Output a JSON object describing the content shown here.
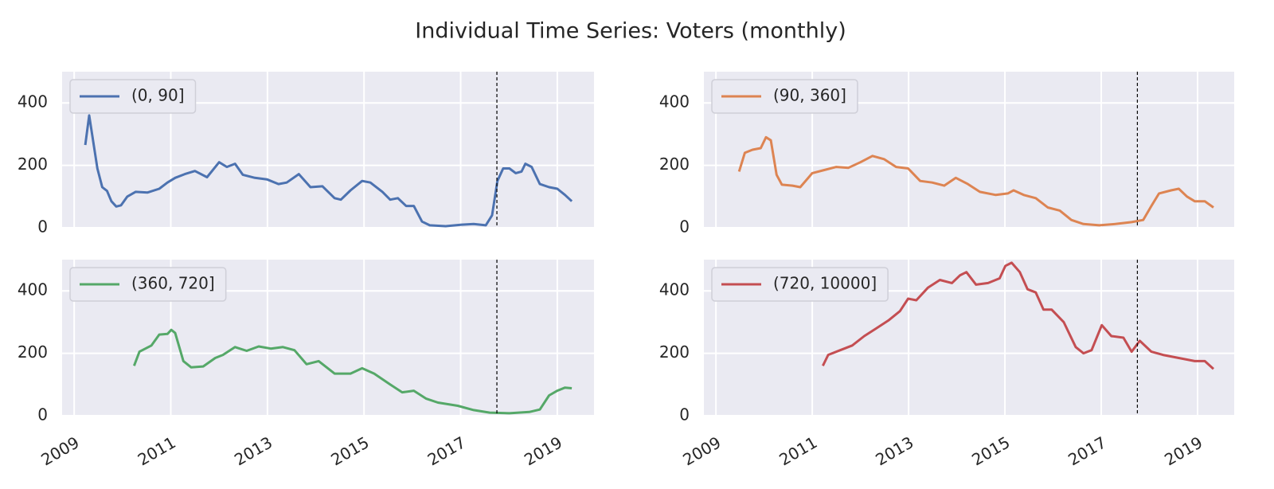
{
  "title": "Individual Time Series: Voters (monthly)",
  "chart_data": [
    {
      "type": "line",
      "legend": "upper left",
      "grid": true,
      "xticklabels": false,
      "vline": 2017.75,
      "xlim": [
        2008.75,
        2019.76
      ],
      "xticks": [
        2009,
        2011,
        2013,
        2015,
        2017,
        2019
      ],
      "ylim": [
        0,
        500
      ],
      "yticks": [
        0,
        200,
        400
      ],
      "x": [
        2009.23,
        2009.31,
        2009.48,
        2009.58,
        2009.68,
        2009.77,
        2009.87,
        2009.97,
        2010.1,
        2010.27,
        2010.52,
        2010.76,
        2010.93,
        2011.09,
        2011.29,
        2011.5,
        2011.75,
        2012.0,
        2012.16,
        2012.33,
        2012.49,
        2012.74,
        2012.99,
        2013.23,
        2013.4,
        2013.65,
        2013.89,
        2014.14,
        2014.39,
        2014.52,
        2014.72,
        2014.96,
        2015.13,
        2015.38,
        2015.54,
        2015.7,
        2015.87,
        2016.03,
        2016.2,
        2016.36,
        2016.69,
        2017.02,
        2017.27,
        2017.52,
        2017.65,
        2017.76,
        2017.88,
        2018.01,
        2018.14,
        2018.26,
        2018.34,
        2018.47,
        2018.64,
        2018.83,
        2019.0,
        2019.16,
        2019.3
      ],
      "series": [
        {
          "name": "(0, 90]",
          "color": "#4c72b0",
          "values": [
            265,
            360,
            190,
            130,
            118,
            85,
            68,
            72,
            100,
            115,
            113,
            125,
            145,
            160,
            172,
            182,
            162,
            210,
            195,
            205,
            170,
            160,
            155,
            140,
            145,
            172,
            130,
            133,
            95,
            90,
            120,
            150,
            145,
            115,
            90,
            95,
            70,
            70,
            20,
            8,
            5,
            10,
            12,
            8,
            40,
            150,
            190,
            190,
            175,
            180,
            205,
            195,
            140,
            130,
            125,
            105,
            85
          ]
        }
      ]
    },
    {
      "type": "line",
      "legend": "upper left",
      "grid": true,
      "xticklabels": false,
      "vline": 2017.75,
      "xlim": [
        2008.75,
        2019.76
      ],
      "xticks": [
        2009,
        2011,
        2013,
        2015,
        2017,
        2019
      ],
      "ylim": [
        0,
        500
      ],
      "yticks": [
        0,
        200,
        400
      ],
      "x": [
        2009.48,
        2009.6,
        2009.76,
        2009.93,
        2010.04,
        2010.14,
        2010.26,
        2010.37,
        2010.59,
        2010.75,
        2011.0,
        2011.25,
        2011.5,
        2011.75,
        2012.0,
        2012.25,
        2012.49,
        2012.74,
        2012.99,
        2013.24,
        2013.49,
        2013.74,
        2013.98,
        2014.23,
        2014.48,
        2014.81,
        2015.06,
        2015.18,
        2015.39,
        2015.64,
        2015.89,
        2016.14,
        2016.38,
        2016.63,
        2016.96,
        2017.29,
        2017.63,
        2017.87,
        2018.04,
        2018.2,
        2018.45,
        2018.61,
        2018.78,
        2018.94,
        2019.15,
        2019.33
      ],
      "series": [
        {
          "name": "(90, 360]",
          "color": "#dd8452",
          "values": [
            180,
            240,
            250,
            255,
            290,
            280,
            170,
            138,
            135,
            130,
            175,
            185,
            195,
            192,
            210,
            230,
            220,
            195,
            190,
            150,
            145,
            135,
            160,
            140,
            115,
            105,
            110,
            120,
            105,
            95,
            65,
            55,
            25,
            12,
            8,
            12,
            18,
            25,
            70,
            110,
            120,
            125,
            100,
            85,
            85,
            65
          ]
        }
      ]
    },
    {
      "type": "line",
      "legend": "upper left",
      "grid": true,
      "xticklabels": true,
      "vline": 2017.75,
      "xlim": [
        2008.75,
        2019.76
      ],
      "xticks": [
        2009,
        2011,
        2013,
        2015,
        2017,
        2019
      ],
      "ylim": [
        0,
        500
      ],
      "yticks": [
        0,
        200,
        400
      ],
      "x": [
        2010.24,
        2010.35,
        2010.6,
        2010.76,
        2010.93,
        2011.01,
        2011.09,
        2011.26,
        2011.42,
        2011.67,
        2011.92,
        2012.08,
        2012.33,
        2012.57,
        2012.82,
        2013.07,
        2013.32,
        2013.56,
        2013.81,
        2014.06,
        2014.39,
        2014.72,
        2014.96,
        2015.21,
        2015.54,
        2015.79,
        2016.03,
        2016.28,
        2016.53,
        2016.94,
        2017.27,
        2017.6,
        2018.01,
        2018.42,
        2018.64,
        2018.83,
        2019.0,
        2019.16,
        2019.3
      ],
      "series": [
        {
          "name": "(360, 720]",
          "color": "#55a868",
          "values": [
            160,
            205,
            225,
            260,
            262,
            275,
            265,
            175,
            155,
            158,
            185,
            195,
            220,
            208,
            222,
            215,
            220,
            210,
            165,
            175,
            135,
            135,
            152,
            135,
            100,
            75,
            80,
            55,
            42,
            32,
            18,
            10,
            8,
            12,
            20,
            65,
            80,
            90,
            88
          ]
        }
      ]
    },
    {
      "type": "line",
      "legend": "upper left",
      "grid": true,
      "xticklabels": true,
      "vline": 2017.75,
      "xlim": [
        2008.75,
        2019.76
      ],
      "xticks": [
        2009,
        2011,
        2013,
        2015,
        2017,
        2019
      ],
      "ylim": [
        0,
        500
      ],
      "yticks": [
        0,
        200,
        400
      ],
      "x": [
        2011.22,
        2011.33,
        2011.58,
        2011.83,
        2012.08,
        2012.33,
        2012.58,
        2012.82,
        2012.99,
        2013.16,
        2013.4,
        2013.65,
        2013.9,
        2014.07,
        2014.2,
        2014.4,
        2014.65,
        2014.89,
        2015.01,
        2015.14,
        2015.31,
        2015.47,
        2015.64,
        2015.8,
        2015.97,
        2016.22,
        2016.47,
        2016.63,
        2016.8,
        2017.01,
        2017.21,
        2017.46,
        2017.63,
        2017.8,
        2018.04,
        2018.28,
        2018.61,
        2018.94,
        2019.15,
        2019.33
      ],
      "series": [
        {
          "name": "(720, 10000]",
          "color": "#c44e52",
          "values": [
            160,
            195,
            210,
            225,
            255,
            280,
            305,
            335,
            375,
            370,
            410,
            435,
            425,
            450,
            460,
            420,
            425,
            440,
            480,
            490,
            460,
            405,
            395,
            340,
            340,
            300,
            220,
            200,
            210,
            290,
            255,
            250,
            205,
            240,
            205,
            195,
            185,
            175,
            175,
            150
          ]
        }
      ]
    }
  ]
}
